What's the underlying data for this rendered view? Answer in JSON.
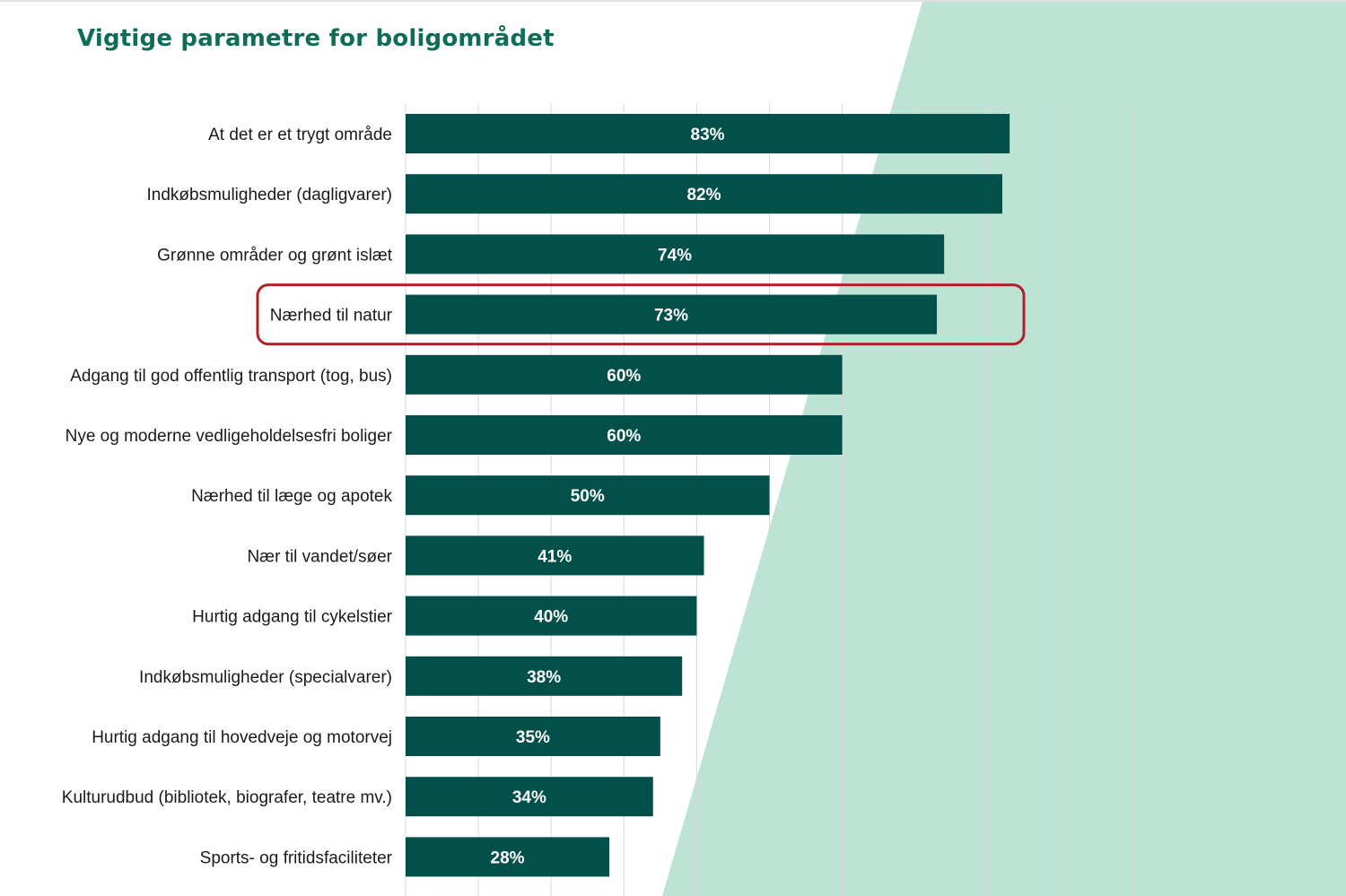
{
  "colors": {
    "title": "#0d6d57",
    "bar": "#03504a",
    "background_shape": "#bde3d4",
    "highlight_border": "#b3202a",
    "gridline": "#d9d9d9"
  },
  "chart_data": {
    "type": "bar",
    "orientation": "horizontal",
    "title": "Vigtige parametre for boligområdet",
    "categories": [
      "At det er et trygt område",
      "Indkøbsmuligheder (dagligvarer)",
      "Grønne områder og grønt islæt",
      "Nærhed til natur",
      "Adgang til god offentlig transport (tog, bus)",
      "Nye og moderne vedligeholdelsesfri boliger",
      "Nærhed til læge og apotek",
      "Nær til vandet/søer",
      "Hurtig adgang til cykelstier",
      "Indkøbsmuligheder (specialvarer)",
      "Hurtig adgang til hovedveje og motorvej",
      "Kulturudbud (bibliotek, biografer, teatre mv.)",
      "Sports- og fritidsfaciliteter"
    ],
    "values": [
      83,
      82,
      74,
      73,
      60,
      60,
      50,
      41,
      40,
      38,
      35,
      34,
      28
    ],
    "value_labels": [
      "83%",
      "82%",
      "74%",
      "73%",
      "60%",
      "60%",
      "50%",
      "41%",
      "40%",
      "38%",
      "35%",
      "34%",
      "28%"
    ],
    "unit": "%",
    "xlim": [
      0,
      100
    ],
    "grid": true,
    "highlighted_category": "Nærhed til natur"
  }
}
